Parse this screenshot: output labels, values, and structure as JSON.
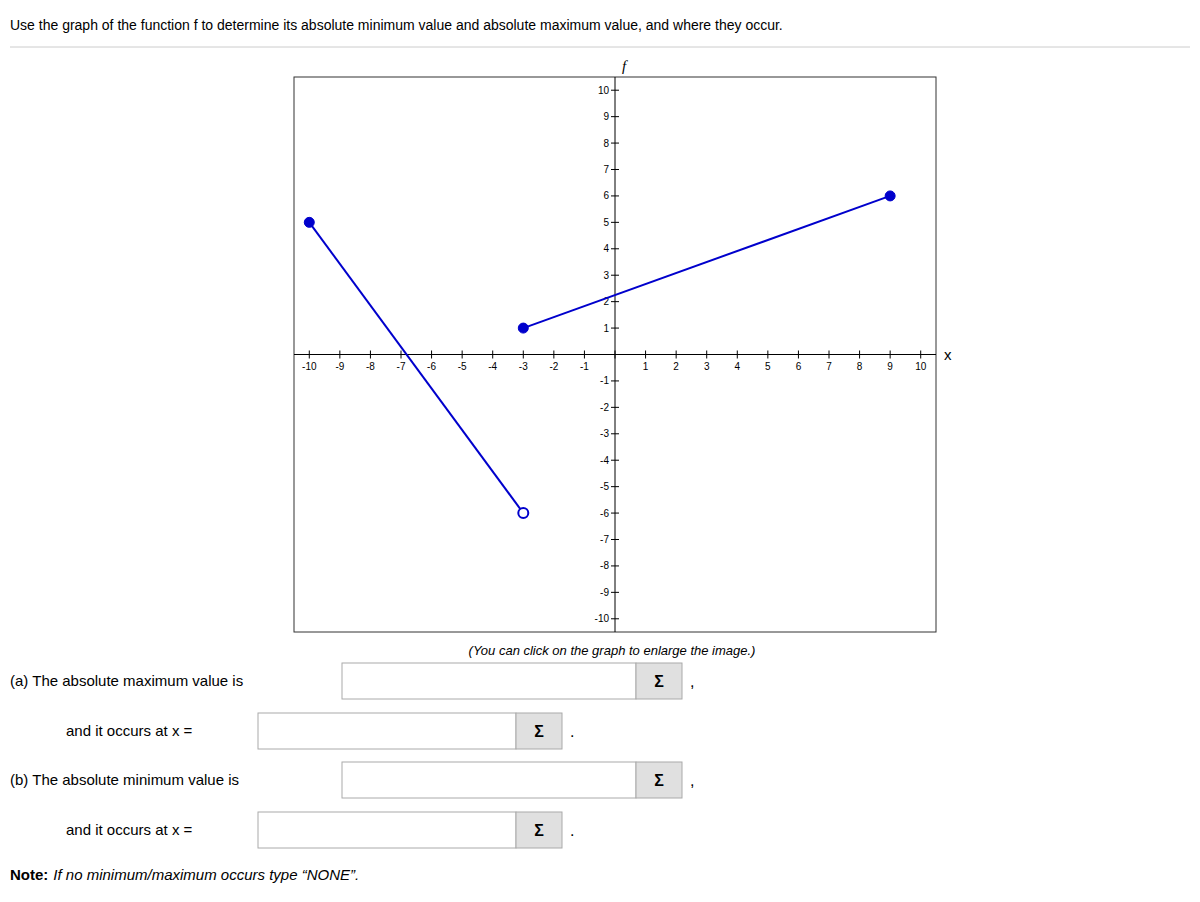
{
  "chart_data": {
    "type": "line",
    "title": "Use the graph of the function f to determine its absolute minimum value and absolute maximum value, and where they occur.",
    "x_label": "x",
    "y_label": "f",
    "xlim": [
      -10.5,
      10.5
    ],
    "ylim": [
      -10.5,
      10.5
    ],
    "xticks": [
      -10,
      -9,
      -8,
      -7,
      -6,
      -5,
      -4,
      -3,
      -2,
      -1,
      {
        "value": 0,
        "label": null
      },
      1,
      2,
      3,
      4,
      5,
      6,
      7,
      8,
      9,
      10
    ],
    "yticks": [
      -10,
      -9,
      -8,
      -7,
      -6,
      -5,
      -4,
      -3,
      -2,
      -1,
      {
        "value": 0,
        "label": null
      },
      1,
      2,
      3,
      4,
      5,
      6,
      7,
      8,
      9,
      10
    ],
    "grid": false,
    "series": [
      {
        "x": [
          -10,
          -3
        ],
        "values": [
          5,
          -6
        ],
        "filled": [
          true,
          false
        ],
        "color": "#0000CC",
        "marker": "circle",
        "line_style": "solid"
      },
      {
        "x": [
          -3,
          9
        ],
        "values": [
          1,
          6
        ],
        "filled": [
          true,
          true
        ],
        "color": "#0000CC",
        "marker": "circle",
        "line_style": "solid"
      }
    ],
    "annotations": [
      "(You can click on the graph to enlarge the image.)",
      "(a) The absolute maximum value is",
      "and it occurs at x =",
      "(b) The absolute minimum value is",
      "and it occurs at x =",
      "Σ",
      ",",
      ".",
      "Note:",
      "If no minimum/maximum occurs type “NONE”."
    ]
  }
}
